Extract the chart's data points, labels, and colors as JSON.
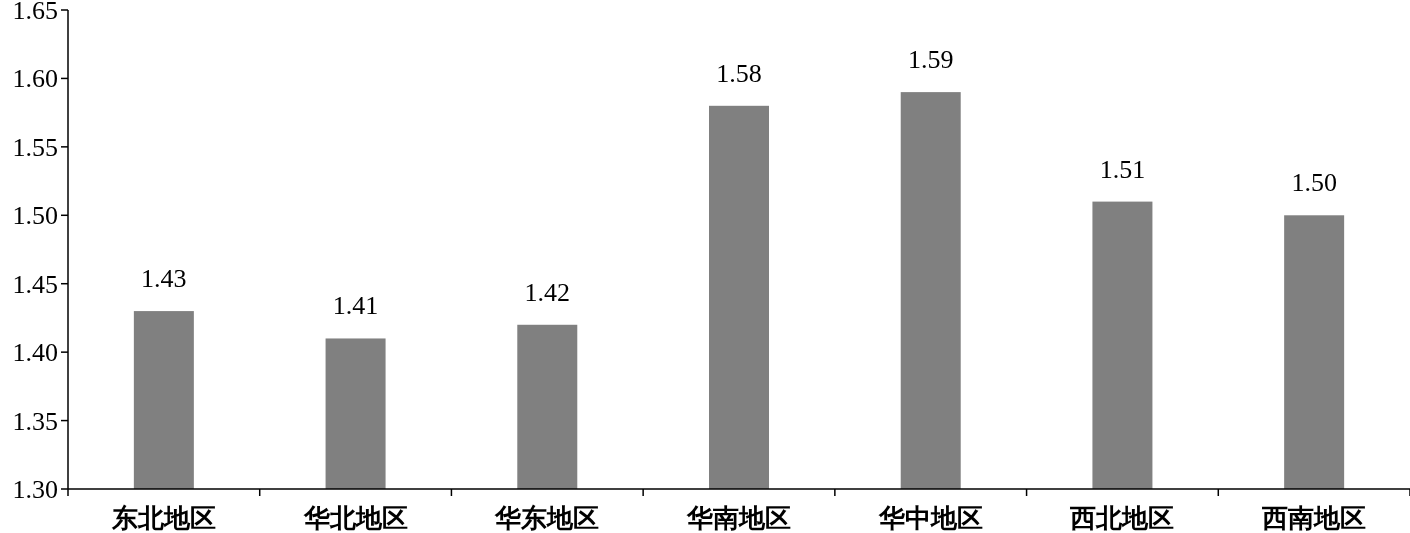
{
  "chart_data": {
    "type": "bar",
    "categories": [
      "东北地区",
      "华北地区",
      "华东地区",
      "华南地区",
      "华中地区",
      "西北地区",
      "西南地区"
    ],
    "values": [
      1.43,
      1.41,
      1.42,
      1.58,
      1.59,
      1.51,
      1.5
    ],
    "value_labels": [
      "1.43",
      "1.41",
      "1.42",
      "1.58",
      "1.59",
      "1.51",
      "1.50"
    ],
    "color": "#808080",
    "ylim": [
      1.3,
      1.65
    ],
    "yticks": [
      {
        "value": 1.3,
        "label": "1.30"
      },
      {
        "value": 1.35,
        "label": "1.35"
      },
      {
        "value": 1.4,
        "label": "1.40"
      },
      {
        "value": 1.45,
        "label": "1.45"
      },
      {
        "value": 1.5,
        "label": "1.50"
      },
      {
        "value": 1.55,
        "label": "1.55"
      },
      {
        "value": 1.6,
        "label": "1.60"
      },
      {
        "value": 1.65,
        "label": "1.65"
      }
    ]
  }
}
